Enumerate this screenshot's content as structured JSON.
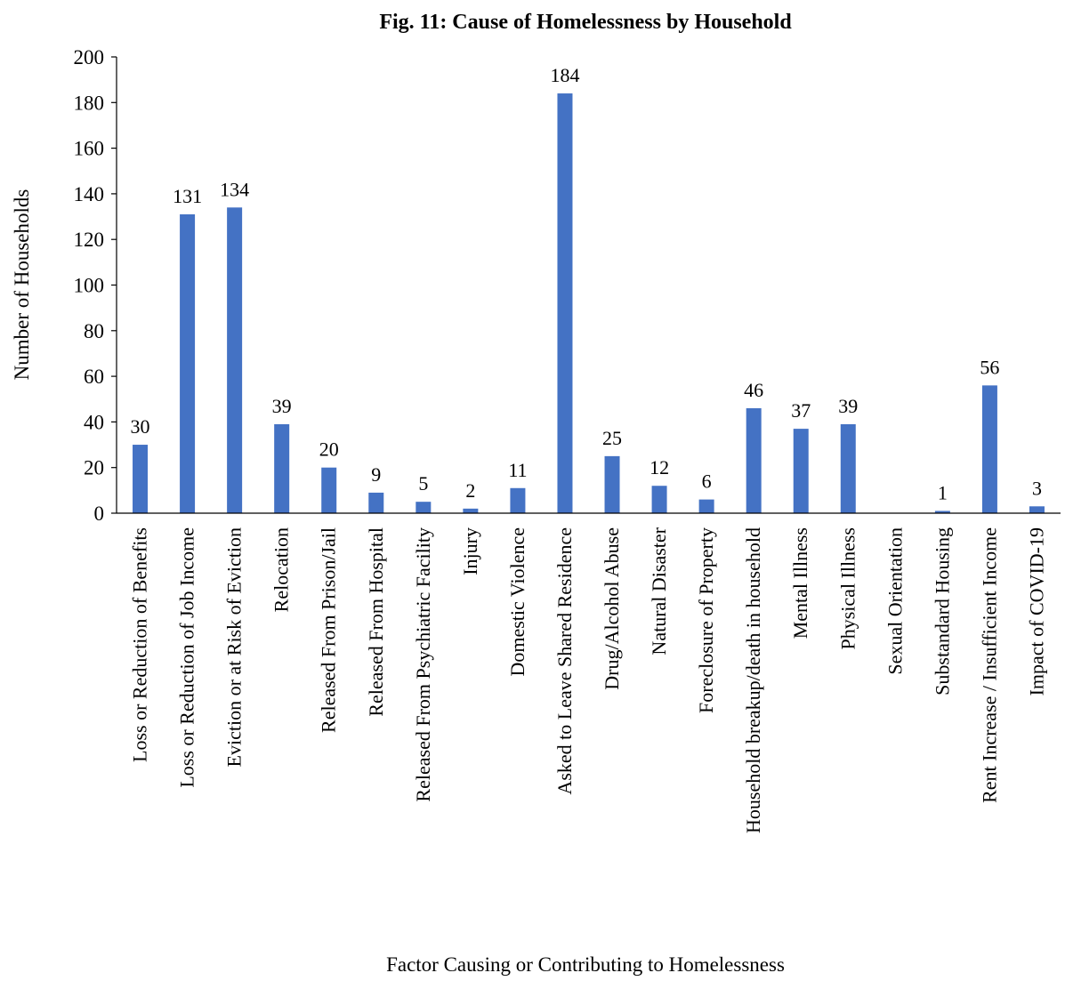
{
  "chart_data": {
    "type": "bar",
    "title": "Fig. 11: Cause of Homelessness by Household",
    "xlabel": "Factor Causing or Contributing to Homelessness",
    "ylabel": "Number of Households",
    "ylim": [
      0,
      200
    ],
    "yticks": [
      0,
      20,
      40,
      60,
      80,
      100,
      120,
      140,
      160,
      180,
      200
    ],
    "grid": false,
    "legend": "none",
    "bar_color": "#4472C4",
    "categories": [
      "Loss or Reduction of Benefits",
      "Loss or Reduction of Job Income",
      "Eviction or at Risk of Eviction",
      "Relocation",
      "Released From Prison/Jail",
      "Released From Hospital",
      "Released From Psychiatric Facility",
      "Injury",
      "Domestic Violence",
      "Asked to Leave Shared Residence",
      "Drug/Alcohol Abuse",
      "Natural Disaster",
      "Foreclosure of Property",
      "Household breakup/death in household",
      "Mental Illness",
      "Physical Illness",
      "Sexual Orientation",
      "Substandard Housing",
      "Rent Increase / Insufficient Income",
      "Impact of COVID-19"
    ],
    "values": [
      30,
      131,
      134,
      39,
      20,
      9,
      5,
      2,
      11,
      184,
      25,
      12,
      6,
      46,
      37,
      39,
      0,
      1,
      56,
      3
    ],
    "data_labels": [
      "30",
      "131",
      "134",
      "39",
      "20",
      "9",
      "5",
      "2",
      "11",
      "184",
      "25",
      "12",
      "6",
      "46",
      "37",
      "39",
      "",
      "1",
      "56",
      "3"
    ]
  }
}
